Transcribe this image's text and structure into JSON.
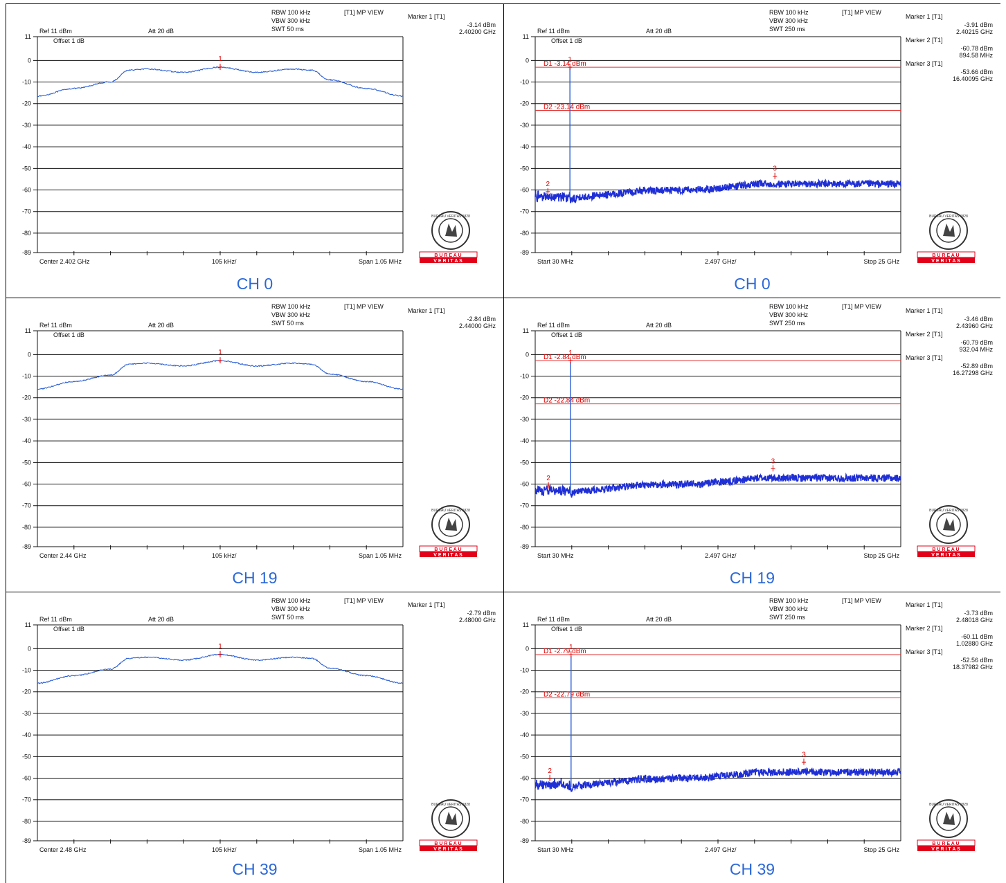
{
  "instrument": {
    "ref": "Ref 11 dBm",
    "att": "Att  20 dB",
    "offset": "Offset 1 dB",
    "rbw": "RBW 100 kHz",
    "vbw": "VBW 300 kHz",
    "view": "[T1] MP VIEW",
    "yticks": [
      "11",
      "0",
      "-10",
      "-20",
      "-30",
      "-40",
      "-50",
      "-60",
      "-70",
      "-80",
      "-89"
    ],
    "logo_word1": "B U R E A U",
    "logo_word2": "V E R I T A S",
    "logo_ring": "BUREAU VERITAS 1828"
  },
  "colors": {
    "trace": "#1f2fd6",
    "inband_trace": "#2b5fd6",
    "marker": "#e00000",
    "limit": "#e03030",
    "caption": "#2b68d9",
    "logo_red": "#e2001a"
  },
  "panels": [
    {
      "caption": "CH 0",
      "kind": "inband",
      "swt": "SWT 50 ms",
      "center": "Center 2.402 GHz",
      "div": "105 kHz/",
      "span": "Span 1.05 MHz",
      "markers": [
        {
          "label": "Marker 1 [T1]",
          "level": "-3.14 dBm",
          "freq": "2.40200 GHz"
        }
      ],
      "peak_db": -3.14
    },
    {
      "caption": "CH 0",
      "kind": "spurious",
      "swt": "SWT 250 ms",
      "start": "Start 30 MHz",
      "div": "2.497 GHz/",
      "stop": "Stop 25 GHz",
      "markers": [
        {
          "label": "Marker 1 [T1]",
          "level": "-3.91 dBm",
          "freq": "2.40215 GHz"
        },
        {
          "label": "Marker 2 [T1]",
          "level": "-60.78 dBm",
          "freq": "894.58 MHz"
        },
        {
          "label": "Marker 3 [T1]",
          "level": "-53.66 dBm",
          "freq": "16.40095 GHz"
        }
      ],
      "d1": "D1 -3.14 dBm",
      "d2": "D2 -23.14 dBm",
      "d1_db": -3.14,
      "d2_db": -23.14,
      "m1_ghz": 2.40215,
      "m2_ghz": 0.89458,
      "m2_db": -60.78,
      "m3_ghz": 16.40095,
      "m3_db": -53.66
    },
    {
      "caption": "CH 19",
      "kind": "inband",
      "swt": "SWT 50 ms",
      "center": "Center 2.44 GHz",
      "div": "105 kHz/",
      "span": "Span 1.05 MHz",
      "markers": [
        {
          "label": "Marker 1 [T1]",
          "level": "-2.84 dBm",
          "freq": "2.44000 GHz"
        }
      ],
      "peak_db": -2.84
    },
    {
      "caption": "CH 19",
      "kind": "spurious",
      "swt": "SWT 250 ms",
      "start": "Start 30 MHz",
      "div": "2.497 GHz/",
      "stop": "Stop 25 GHz",
      "markers": [
        {
          "label": "Marker 1 [T1]",
          "level": "-3.46 dBm",
          "freq": "2.43960 GHz"
        },
        {
          "label": "Marker 2 [T1]",
          "level": "-60.79 dBm",
          "freq": "932.04 MHz"
        },
        {
          "label": "Marker 3 [T1]",
          "level": "-52.89 dBm",
          "freq": "16.27298 GHz"
        }
      ],
      "d1": "D1 -2.84 dBm",
      "d2": "D2 -22.84 dBm",
      "d1_db": -2.84,
      "d2_db": -22.84,
      "m1_ghz": 2.4396,
      "m2_ghz": 0.93204,
      "m2_db": -60.79,
      "m3_ghz": 16.27298,
      "m3_db": -52.89
    },
    {
      "caption": "CH 39",
      "kind": "inband",
      "swt": "SWT 50 ms",
      "center": "Center 2.48 GHz",
      "div": "105 kHz/",
      "span": "Span 1.05 MHz",
      "markers": [
        {
          "label": "Marker 1 [T1]",
          "level": "-2.79 dBm",
          "freq": "2.48000 GHz"
        }
      ],
      "peak_db": -2.79
    },
    {
      "caption": "CH 39",
      "kind": "spurious",
      "swt": "SWT 250 ms",
      "start": "Start 30 MHz",
      "div": "2.497 GHz/",
      "stop": "Stop 25 GHz",
      "markers": [
        {
          "label": "Marker 1 [T1]",
          "level": "-3.73 dBm",
          "freq": "2.48018 GHz"
        },
        {
          "label": "Marker 2 [T1]",
          "level": "-60.11 dBm",
          "freq": "1.02880 GHz"
        },
        {
          "label": "Marker 3 [T1]",
          "level": "-52.56 dBm",
          "freq": "18.37982 GHz"
        }
      ],
      "d1": "D1 -2.79 dBm",
      "d2": "D2 -22.79 dBm",
      "d1_db": -2.79,
      "d2_db": -22.79,
      "m1_ghz": 2.48018,
      "m2_ghz": 1.0288,
      "m2_db": -60.11,
      "m3_ghz": 18.37982,
      "m3_db": -52.56
    }
  ],
  "chart_data": [
    {
      "type": "line",
      "title": "CH 0",
      "xlabel": "Center 2.402 GHz / 105 kHz/ / Span 1.05 MHz",
      "ylabel": "dBm",
      "ylim": [
        -89,
        11
      ],
      "x": [
        -525,
        -420,
        -315,
        -262,
        -210,
        -105,
        0,
        105,
        210,
        262,
        315,
        420,
        525
      ],
      "series": [
        {
          "values": [
            -16.5,
            -13,
            -10,
            -4.5,
            -4,
            -5.5,
            -3.14,
            -5.5,
            -4,
            -4.5,
            -9,
            -13,
            -16.5
          ]
        }
      ],
      "annotations": [
        "Marker 1 [T1] -3.14 dBm 2.40200 GHz"
      ]
    },
    {
      "type": "line",
      "title": "CH 0",
      "xlabel": "Start 30 MHz / 2.497 GHz/ / Stop 25 GHz",
      "ylabel": "dBm",
      "ylim": [
        -89,
        11
      ],
      "x": [
        0.03,
        0.89,
        2.4,
        2.5,
        5,
        10,
        16.4,
        20,
        25
      ],
      "series": [
        {
          "values": [
            -63,
            -60.78,
            -3.91,
            -65,
            -61,
            -60,
            -53.66,
            -57,
            -57
          ]
        }
      ],
      "annotations": [
        "D1 -3.14 dBm",
        "D2 -23.14 dBm",
        "Marker 1 [T1] -3.91 dBm 2.40215 GHz",
        "Marker 2 [T1] -60.78 dBm 894.58 MHz",
        "Marker 3 [T1] -53.66 dBm 16.40095 GHz"
      ]
    },
    {
      "type": "line",
      "title": "CH 19",
      "xlabel": "Center 2.44 GHz / 105 kHz/ / Span 1.05 MHz",
      "ylabel": "dBm",
      "ylim": [
        -89,
        11
      ],
      "x": [
        -525,
        -420,
        -315,
        -262,
        -210,
        -105,
        0,
        105,
        210,
        262,
        315,
        420,
        525
      ],
      "series": [
        {
          "values": [
            -16,
            -12.5,
            -9.5,
            -4.5,
            -4,
            -5.3,
            -2.84,
            -5.3,
            -4,
            -4.5,
            -9,
            -12.5,
            -16
          ]
        }
      ],
      "annotations": [
        "Marker 1 [T1] -2.84 dBm 2.44000 GHz"
      ]
    },
    {
      "type": "line",
      "title": "CH 19",
      "xlabel": "Start 30 MHz / 2.497 GHz/ / Stop 25 GHz",
      "ylabel": "dBm",
      "ylim": [
        -89,
        11
      ],
      "x": [
        0.03,
        0.93,
        2.44,
        2.5,
        5,
        10,
        16.27,
        20,
        25
      ],
      "series": [
        {
          "values": [
            -63,
            -60.79,
            -3.46,
            -64,
            -61,
            -60,
            -52.89,
            -57,
            -57
          ]
        }
      ],
      "annotations": [
        "D1 -2.84 dBm",
        "D2 -22.84 dBm",
        "Marker 1 [T1] -3.46 dBm 2.43960 GHz",
        "Marker 2 [T1] -60.79 dBm 932.04 MHz",
        "Marker 3 [T1] -52.89 dBm 16.27298 GHz"
      ]
    },
    {
      "type": "line",
      "title": "CH 39",
      "xlabel": "Center 2.48 GHz / 105 kHz/ / Span 1.05 MHz",
      "ylabel": "dBm",
      "ylim": [
        -89,
        11
      ],
      "x": [
        -525,
        -420,
        -315,
        -262,
        -210,
        -105,
        0,
        105,
        210,
        262,
        315,
        420,
        525
      ],
      "series": [
        {
          "values": [
            -16,
            -12.5,
            -9.5,
            -4.5,
            -4,
            -5.3,
            -2.79,
            -5.3,
            -4,
            -4.5,
            -9,
            -12.5,
            -16
          ]
        }
      ],
      "annotations": [
        "Marker 1 [T1] -2.79 dBm 2.48000 GHz"
      ]
    },
    {
      "type": "line",
      "title": "CH 39",
      "xlabel": "Start 30 MHz / 2.497 GHz/ / Stop 25 GHz",
      "ylabel": "dBm",
      "ylim": [
        -89,
        11
      ],
      "x": [
        0.03,
        1.03,
        2.48,
        2.5,
        5,
        10,
        18.38,
        20,
        25
      ],
      "series": [
        {
          "values": [
            -63,
            -60.11,
            -3.73,
            -64.5,
            -61,
            -59.5,
            -52.56,
            -56.5,
            -56.5
          ]
        }
      ],
      "annotations": [
        "D1 -2.79 dBm",
        "D2 -22.79 dBm",
        "Marker 1 [T1] -3.73 dBm 2.48018 GHz",
        "Marker 2 [T1] -60.11 dBm 1.02880 GHz",
        "Marker 3 [T1] -52.56 dBm 18.37982 GHz"
      ]
    }
  ]
}
